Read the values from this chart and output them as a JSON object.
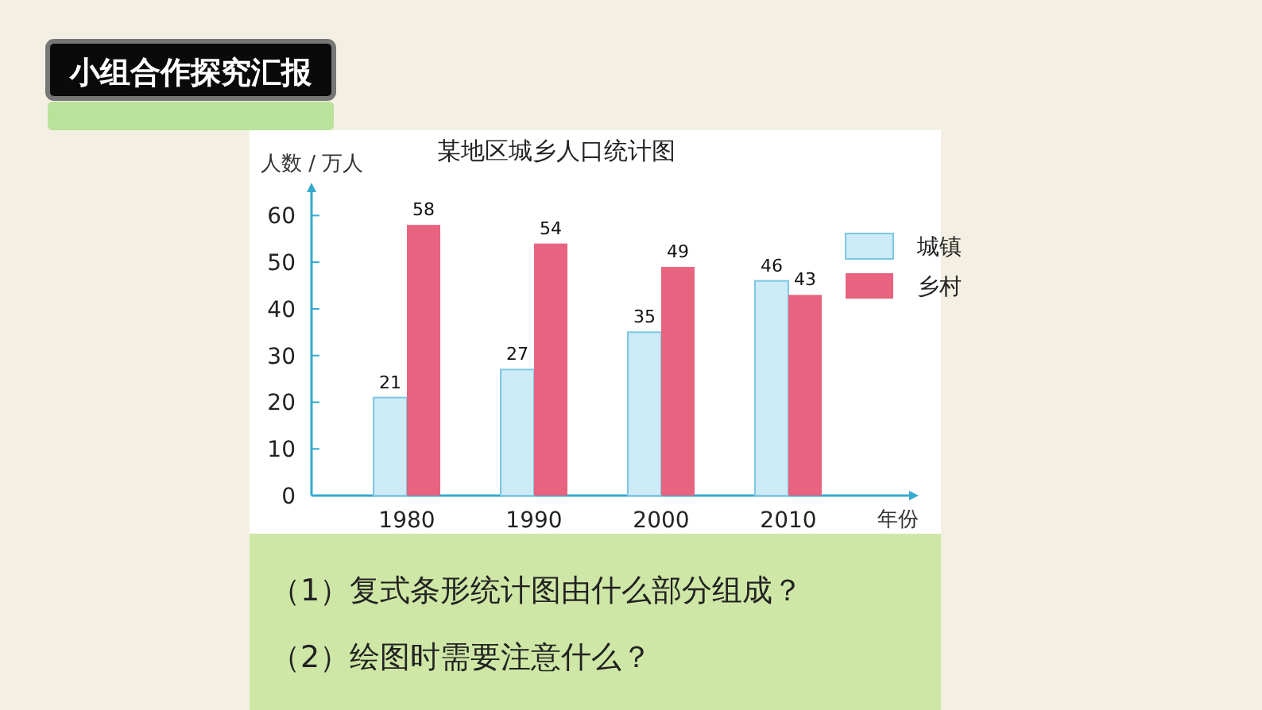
{
  "chart_data": {
    "type": "bar",
    "title": "某地区城乡人口统计图",
    "xlabel": "年份",
    "ylabel": "人数 / 万人",
    "categories": [
      "1980",
      "1990",
      "2000",
      "2010"
    ],
    "series": [
      {
        "name": "城镇",
        "color": "#cdeaf7",
        "values": [
          21,
          27,
          35,
          46
        ]
      },
      {
        "name": "乡村",
        "color": "#e8637f",
        "values": [
          58,
          54,
          49,
          43
        ]
      }
    ],
    "ylim": [
      0,
      65
    ],
    "yticks": [
      0,
      10,
      20,
      30,
      40,
      50,
      60
    ],
    "data_labels": true,
    "legend": "top right",
    "annotations": [
      "小组合作探究汇报",
      "（1）复式条形统计图由什么部分组成？",
      "（2）绘图时需要注意什么？"
    ]
  }
}
